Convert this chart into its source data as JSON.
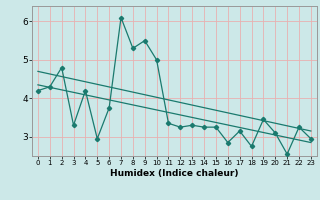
{
  "xlabel": "Humidex (Indice chaleur)",
  "bg_color": "#cce8e8",
  "line_color": "#1a7a6e",
  "vgrid_color": "#e8b0b0",
  "hgrid_color": "#e8b0b0",
  "xlim": [
    -0.5,
    23.5
  ],
  "ylim": [
    2.5,
    6.4
  ],
  "yticks": [
    3,
    4,
    5,
    6
  ],
  "xticks": [
    0,
    1,
    2,
    3,
    4,
    5,
    6,
    7,
    8,
    9,
    10,
    11,
    12,
    13,
    14,
    15,
    16,
    17,
    18,
    19,
    20,
    21,
    22,
    23
  ],
  "series": [
    {
      "x": [
        0,
        1,
        2,
        3,
        4,
        5,
        6,
        7,
        8,
        9,
        10,
        11,
        12,
        13,
        14,
        15,
        16,
        17,
        18,
        19,
        20,
        21,
        22,
        23
      ],
      "y": [
        4.2,
        4.3,
        4.8,
        3.3,
        4.2,
        2.95,
        3.75,
        6.1,
        5.3,
        5.5,
        5.0,
        3.35,
        3.25,
        3.3,
        3.25,
        3.25,
        2.85,
        3.15,
        2.75,
        3.45,
        3.1,
        2.55,
        3.25,
        2.95
      ]
    },
    {
      "x": [
        0,
        23
      ],
      "y": [
        4.7,
        3.15
      ]
    },
    {
      "x": [
        0,
        23
      ],
      "y": [
        4.35,
        2.85
      ]
    }
  ]
}
